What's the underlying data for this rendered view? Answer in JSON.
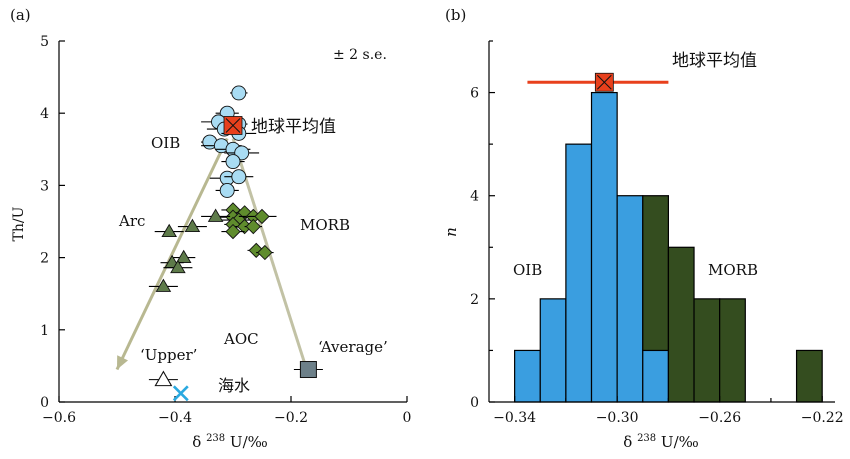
{
  "chart_data": [
    {
      "panel_label": "(a)",
      "type": "scatter",
      "xlabel": "δ 238 U/‰",
      "ylabel": "Th/U",
      "xlim": [
        -0.6,
        0
      ],
      "ylim": [
        0,
        5
      ],
      "xticks": [
        "−0.6",
        "−0.4",
        "−0.2",
        "0"
      ],
      "yticks": [
        "0",
        "1",
        "2",
        "3",
        "4",
        "5"
      ],
      "note": "± 2  s.e.",
      "series": [
        {
          "name": "OIB",
          "marker": "circle",
          "color": "#a9dcf3",
          "points": [
            {
              "x": -0.29,
              "y": 4.28,
              "err": 0.015
            },
            {
              "x": -0.31,
              "y": 4.0,
              "err": 0.02
            },
            {
              "x": -0.325,
              "y": 3.88,
              "err": 0.03
            },
            {
              "x": -0.29,
              "y": 3.85,
              "err": 0.015
            },
            {
              "x": -0.315,
              "y": 3.78,
              "err": 0.03
            },
            {
              "x": -0.29,
              "y": 3.72,
              "err": 0.03
            },
            {
              "x": -0.34,
              "y": 3.6,
              "err": 0.015
            },
            {
              "x": -0.32,
              "y": 3.55,
              "err": 0.035
            },
            {
              "x": -0.3,
              "y": 3.5,
              "err": 0.03
            },
            {
              "x": -0.285,
              "y": 3.45,
              "err": 0.03
            },
            {
              "x": -0.3,
              "y": 3.33,
              "err": 0.02
            },
            {
              "x": -0.31,
              "y": 3.1,
              "err": 0.03
            },
            {
              "x": -0.29,
              "y": 3.12,
              "err": 0.025
            },
            {
              "x": -0.31,
              "y": 2.93,
              "err": 0.02
            }
          ]
        },
        {
          "name": "Arc",
          "marker": "triangle",
          "color": "#5e7b4a",
          "points": [
            {
              "x": -0.33,
              "y": 2.57,
              "err": 0.025
            },
            {
              "x": -0.37,
              "y": 2.43,
              "err": 0.025
            },
            {
              "x": -0.41,
              "y": 2.36,
              "err": 0.025
            },
            {
              "x": -0.385,
              "y": 2.0,
              "err": 0.02
            },
            {
              "x": -0.405,
              "y": 1.93,
              "err": 0.02
            },
            {
              "x": -0.395,
              "y": 1.86,
              "err": 0.025
            },
            {
              "x": -0.42,
              "y": 1.6,
              "err": 0.025
            }
          ]
        },
        {
          "name": "MORB",
          "marker": "diamond",
          "color": "#5f8c2d",
          "points": [
            {
              "x": -0.3,
              "y": 2.66,
              "err": 0.02
            },
            {
              "x": -0.28,
              "y": 2.62,
              "err": 0.02
            },
            {
              "x": -0.3,
              "y": 2.56,
              "err": 0.025
            },
            {
              "x": -0.29,
              "y": 2.52,
              "err": 0.03
            },
            {
              "x": -0.265,
              "y": 2.57,
              "err": 0.025
            },
            {
              "x": -0.25,
              "y": 2.57,
              "err": 0.025
            },
            {
              "x": -0.3,
              "y": 2.46,
              "err": 0.015
            },
            {
              "x": -0.28,
              "y": 2.43,
              "err": 0.02
            },
            {
              "x": -0.265,
              "y": 2.43,
              "err": 0.015
            },
            {
              "x": -0.3,
              "y": 2.36,
              "err": 0.02
            },
            {
              "x": -0.26,
              "y": 2.1,
              "err": 0.015
            },
            {
              "x": -0.245,
              "y": 2.07,
              "err": 0.015
            }
          ]
        }
      ],
      "special_points": [
        {
          "label": "地球平均值",
          "x": -0.3,
          "y": 3.83,
          "err": 0.015,
          "marker": "square-x",
          "color": "#e8401c"
        },
        {
          "label": "‘Upper’",
          "x": -0.42,
          "y": 0.31,
          "err": 0.025,
          "marker": "triangle-open",
          "color": "#ffffff"
        },
        {
          "label": "‘Average’",
          "x": -0.17,
          "y": 0.45,
          "err": 0.025,
          "marker": "square",
          "color": "#6d8089"
        },
        {
          "label": "海水",
          "x": -0.39,
          "y": 0.12,
          "err": 0,
          "marker": "x",
          "color": "#2aa9e0"
        }
      ],
      "text_labels": [
        "OIB",
        "Arc",
        "MORB",
        "AOC"
      ],
      "trend_lines": [
        {
          "from": [
            -0.31,
            3.65
          ],
          "to": [
            -0.5,
            0.45
          ],
          "arrow": true,
          "color": "#b8b891"
        },
        {
          "from": [
            -0.3,
            3.65
          ],
          "to": [
            -0.175,
            0.5
          ],
          "arrow": false,
          "color": "#c2c2a5"
        }
      ]
    },
    {
      "panel_label": "(b)",
      "type": "bar",
      "subtype": "stacked histogram",
      "xlabel": "δ 238 U/‰",
      "ylabel": "n",
      "xlim": [
        -0.35,
        -0.215
      ],
      "ylim": [
        0,
        7
      ],
      "xticks": [
        "−0.34",
        "−0.30",
        "−0.26",
        "−0.22"
      ],
      "yticks": [
        "0",
        "2",
        "4",
        "6"
      ],
      "bin_width": 0.01,
      "bin_starts": [
        -0.34,
        -0.33,
        -0.32,
        -0.31,
        -0.3,
        -0.29,
        -0.28,
        -0.27,
        -0.26,
        -0.25,
        -0.24,
        -0.23
      ],
      "series": [
        {
          "name": "OIB",
          "color": "#3a9ee0",
          "values": [
            1,
            2,
            5,
            6,
            4,
            1,
            0,
            0,
            0,
            0,
            0,
            0
          ]
        },
        {
          "name": "MORB",
          "color": "#344d1f",
          "values": [
            0,
            0,
            0,
            0,
            0,
            3,
            3,
            2,
            2,
            0,
            0,
            1
          ]
        }
      ],
      "earth_average": {
        "label": "地球平均值",
        "x": -0.305,
        "y": 6.2,
        "xerr_low": -0.335,
        "xerr_high": -0.28,
        "color": "#e8401c"
      }
    }
  ]
}
